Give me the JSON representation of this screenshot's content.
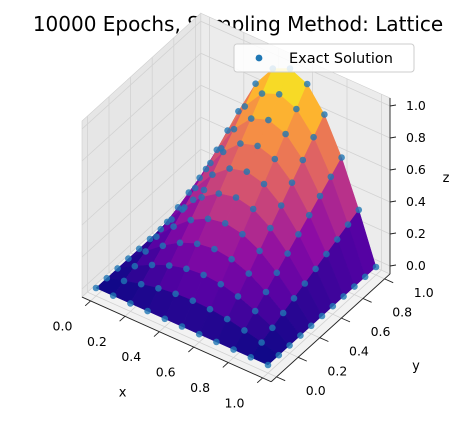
{
  "chart_data": {
    "type": "scatter",
    "title": "10000 Epochs, Sampling Method: Lattice",
    "xlabel": "x",
    "ylabel": "y",
    "zlabel": "z",
    "xlim": [
      0,
      1
    ],
    "ylim": [
      0,
      1
    ],
    "zlim": [
      0,
      1
    ],
    "x_ticks": [
      "0.0",
      "0.2",
      "0.4",
      "0.6",
      "0.8",
      "1.0"
    ],
    "y_ticks": [
      "0.0",
      "0.2",
      "0.4",
      "0.6",
      "0.8",
      "1.0"
    ],
    "z_ticks": [
      "0.0",
      "0.2",
      "0.4",
      "0.6",
      "0.8",
      "1.0"
    ],
    "grid": true,
    "legend": {
      "position": "top-right",
      "entries": [
        "Exact Solution"
      ]
    },
    "colors": {
      "marker": "#1f77b4",
      "surface_colormap": "plasma"
    },
    "surface": {
      "function": "z = sin(pi x) * y",
      "grid_x": [
        0,
        0.1,
        0.2,
        0.3,
        0.4,
        0.5,
        0.6,
        0.7,
        0.8,
        0.9,
        1.0
      ],
      "grid_y": [
        0,
        0.1,
        0.2,
        0.3,
        0.4,
        0.5,
        0.6,
        0.7,
        0.8,
        0.9,
        1.0
      ],
      "values": [
        [
          0.0,
          0.0,
          0.0,
          0.0,
          0.0,
          0.0,
          0.0,
          0.0,
          0.0,
          0.0,
          0.0
        ],
        [
          0.0,
          0.031,
          0.059,
          0.081,
          0.095,
          0.1,
          0.095,
          0.081,
          0.059,
          0.031,
          0.0
        ],
        [
          0.0,
          0.062,
          0.118,
          0.162,
          0.19,
          0.2,
          0.19,
          0.162,
          0.118,
          0.062,
          0.0
        ],
        [
          0.0,
          0.093,
          0.176,
          0.243,
          0.285,
          0.3,
          0.285,
          0.243,
          0.176,
          0.093,
          0.0
        ],
        [
          0.0,
          0.124,
          0.235,
          0.324,
          0.38,
          0.4,
          0.38,
          0.324,
          0.235,
          0.124,
          0.0
        ],
        [
          0.0,
          0.155,
          0.294,
          0.405,
          0.476,
          0.5,
          0.476,
          0.405,
          0.294,
          0.155,
          0.0
        ],
        [
          0.0,
          0.185,
          0.353,
          0.485,
          0.571,
          0.6,
          0.571,
          0.485,
          0.353,
          0.185,
          0.0
        ],
        [
          0.0,
          0.216,
          0.411,
          0.566,
          0.666,
          0.7,
          0.666,
          0.566,
          0.411,
          0.216,
          0.0
        ],
        [
          0.0,
          0.247,
          0.47,
          0.647,
          0.761,
          0.8,
          0.761,
          0.647,
          0.47,
          0.247,
          0.0
        ],
        [
          0.0,
          0.278,
          0.529,
          0.728,
          0.856,
          0.9,
          0.856,
          0.728,
          0.529,
          0.278,
          0.0
        ],
        [
          0.0,
          0.309,
          0.588,
          0.809,
          0.951,
          1.0,
          0.951,
          0.809,
          0.588,
          0.309,
          0.0
        ]
      ]
    },
    "series": [
      {
        "name": "Exact Solution",
        "x": [
          0,
          0.1,
          0.2,
          0.3,
          0.4,
          0.5,
          0.6,
          0.7,
          0.8,
          0.9,
          1.0
        ],
        "y": [
          0,
          0.1,
          0.2,
          0.3,
          0.4,
          0.5,
          0.6,
          0.7,
          0.8,
          0.9,
          1.0
        ],
        "z": "sin(pi x) * y evaluated on the 11 x 11 lattice (same values as surface)"
      }
    ]
  }
}
